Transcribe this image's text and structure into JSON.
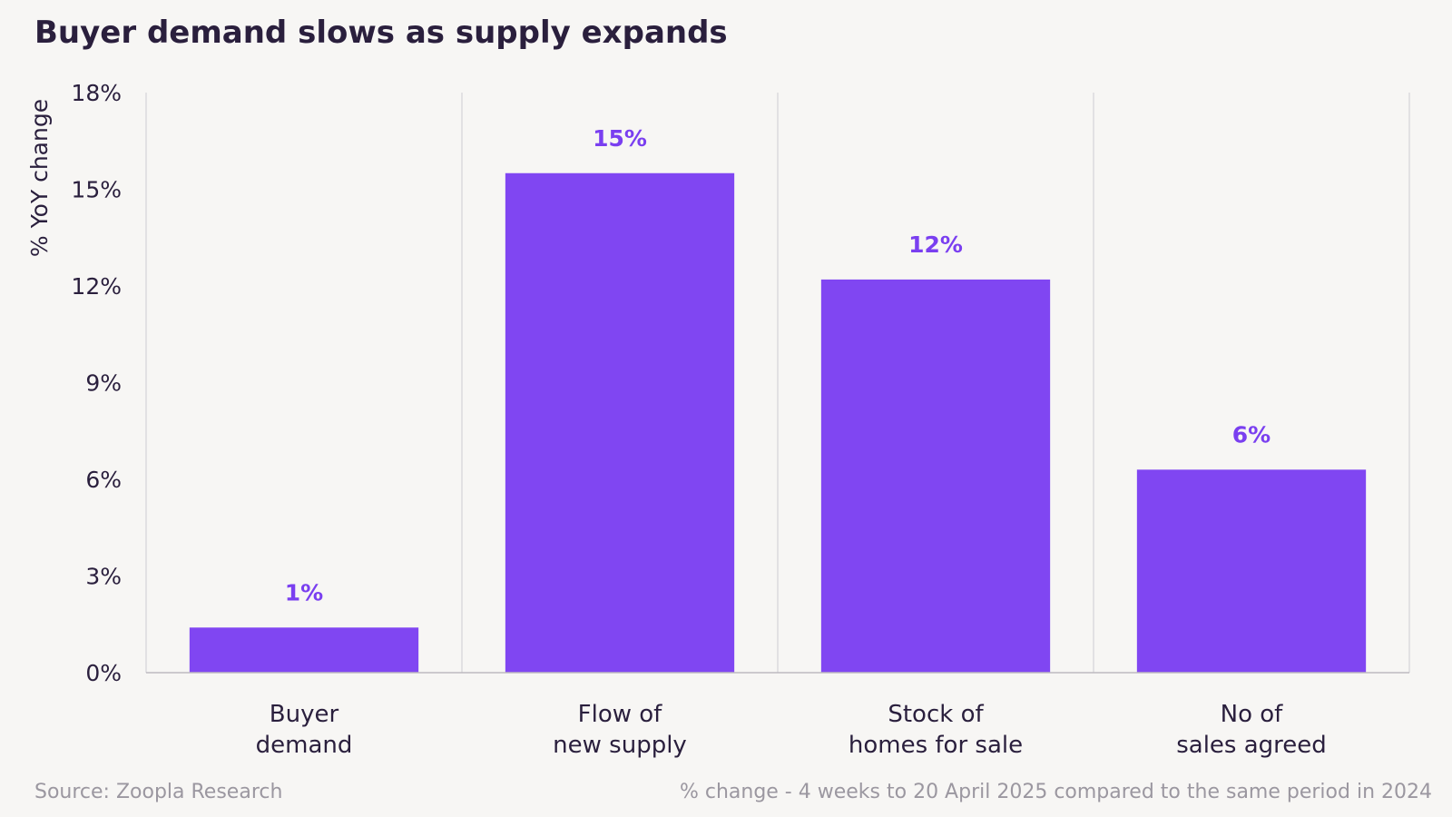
{
  "chart_data": {
    "type": "bar",
    "title": "Buyer demand slows as supply expands",
    "ylabel": "% YoY change",
    "xlabel": "",
    "categories": [
      [
        "Buyer",
        "demand"
      ],
      [
        "Flow of",
        "new supply"
      ],
      [
        "Stock of",
        "homes for sale"
      ],
      [
        "No of",
        "sales agreed"
      ]
    ],
    "values": [
      1.4,
      15.5,
      12.2,
      6.3
    ],
    "data_labels": [
      "1%",
      "15%",
      "12%",
      "6%"
    ],
    "ylim": [
      0,
      18
    ],
    "yticks": [
      0,
      3,
      6,
      9,
      12,
      15,
      18
    ],
    "ytick_labels": [
      "0%",
      "3%",
      "6%",
      "9%",
      "12%",
      "15%",
      "18%"
    ],
    "grid": "vertical category separators",
    "legend": "none",
    "colors": {
      "bar": "#8046f2",
      "data_label": "#7a3ff0",
      "text": "#2a1f3d",
      "grid": "#dcdadd",
      "footer": "#9b97a0",
      "background": "#f7f6f4"
    }
  },
  "footer": {
    "source": "Source: Zoopla Research",
    "note": "% change - 4 weeks to 20 April 2025 compared to the same period in 2024"
  }
}
